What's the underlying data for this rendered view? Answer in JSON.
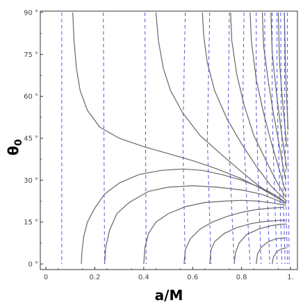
{
  "chart_data": {
    "type": "line",
    "title": "",
    "xlabel": "a/M",
    "ylabel_main": "θ",
    "ylabel_sub": "0",
    "xlim": [
      0,
      1
    ],
    "ylim": [
      0,
      90
    ],
    "x_ticks": [
      {
        "value": 0,
        "label": "0"
      },
      {
        "value": 0.2,
        "label": "0.2"
      },
      {
        "value": 0.4,
        "label": "0.4"
      },
      {
        "value": 0.6,
        "label": "0.6"
      },
      {
        "value": 0.8,
        "label": "0.8"
      },
      {
        "value": 1,
        "label": "1."
      }
    ],
    "y_ticks": [
      {
        "value": 0,
        "label": "0 °"
      },
      {
        "value": 15,
        "label": "15 °"
      },
      {
        "value": 30,
        "label": "30 °"
      },
      {
        "value": 45,
        "label": "45 °"
      },
      {
        "value": 60,
        "label": "60 °"
      },
      {
        "value": 75,
        "label": "75 °"
      },
      {
        "value": 90,
        "label": "90 °"
      }
    ],
    "grid": false,
    "colors": {
      "solid": "#666666",
      "dashed": "#5555dd"
    },
    "solid_curves": [
      [
        [
          0.145,
          0
        ],
        [
          0.148,
          5
        ],
        [
          0.155,
          10
        ],
        [
          0.17,
          15
        ],
        [
          0.2,
          20
        ],
        [
          0.24,
          25
        ],
        [
          0.3,
          29
        ],
        [
          0.38,
          32
        ],
        [
          0.47,
          33.5
        ],
        [
          0.56,
          34
        ],
        [
          0.64,
          33.5
        ],
        [
          0.72,
          32
        ],
        [
          0.8,
          30
        ],
        [
          0.86,
          28
        ],
        [
          0.91,
          26
        ],
        [
          0.95,
          24
        ],
        [
          0.98,
          22
        ]
      ],
      [
        [
          0.24,
          0
        ],
        [
          0.245,
          6
        ],
        [
          0.26,
          12
        ],
        [
          0.29,
          18
        ],
        [
          0.34,
          22
        ],
        [
          0.42,
          26
        ],
        [
          0.5,
          27.5
        ],
        [
          0.6,
          28
        ],
        [
          0.7,
          27.5
        ],
        [
          0.8,
          26.5
        ],
        [
          0.88,
          25
        ],
        [
          0.94,
          23
        ],
        [
          0.98,
          21.5
        ]
      ],
      [
        [
          0.4,
          0
        ],
        [
          0.405,
          6
        ],
        [
          0.42,
          11
        ],
        [
          0.45,
          15
        ],
        [
          0.5,
          18
        ],
        [
          0.57,
          20.5
        ],
        [
          0.65,
          22
        ],
        [
          0.73,
          22.5
        ],
        [
          0.8,
          22.8
        ],
        [
          0.87,
          22.5
        ],
        [
          0.93,
          21.8
        ],
        [
          0.98,
          21
        ]
      ],
      [
        [
          0.565,
          0
        ],
        [
          0.57,
          5
        ],
        [
          0.59,
          9
        ],
        [
          0.63,
          12.5
        ],
        [
          0.68,
          15
        ],
        [
          0.74,
          17
        ],
        [
          0.8,
          18.5
        ],
        [
          0.86,
          19.5
        ],
        [
          0.92,
          20
        ],
        [
          0.97,
          20.3
        ]
      ],
      [
        [
          0.67,
          0
        ],
        [
          0.675,
          5
        ],
        [
          0.69,
          8
        ],
        [
          0.73,
          11
        ],
        [
          0.78,
          13
        ],
        [
          0.84,
          14.5
        ],
        [
          0.9,
          15.3
        ],
        [
          0.95,
          15.6
        ],
        [
          0.98,
          15.7
        ]
      ],
      [
        [
          0.77,
          0
        ],
        [
          0.775,
          4
        ],
        [
          0.79,
          7.5
        ],
        [
          0.82,
          10.5
        ],
        [
          0.87,
          12.5
        ],
        [
          0.92,
          13.7
        ],
        [
          0.96,
          14.2
        ],
        [
          0.985,
          14.3
        ]
      ],
      [
        [
          0.86,
          0
        ],
        [
          0.865,
          3.5
        ],
        [
          0.88,
          6
        ],
        [
          0.91,
          8
        ],
        [
          0.94,
          9
        ],
        [
          0.97,
          9.3
        ],
        [
          0.985,
          9.4
        ]
      ],
      [
        [
          0.925,
          0
        ],
        [
          0.93,
          2.5
        ],
        [
          0.945,
          4.5
        ],
        [
          0.965,
          5.5
        ],
        [
          0.985,
          5.8
        ]
      ],
      [
        [
          0.11,
          90
        ],
        [
          0.115,
          80
        ],
        [
          0.125,
          70
        ],
        [
          0.14,
          62
        ],
        [
          0.17,
          55
        ],
        [
          0.22,
          49
        ],
        [
          0.3,
          45
        ],
        [
          0.4,
          42
        ],
        [
          0.5,
          39.5
        ],
        [
          0.6,
          37
        ],
        [
          0.7,
          34
        ],
        [
          0.8,
          30.5
        ],
        [
          0.88,
          27
        ],
        [
          0.94,
          24
        ],
        [
          0.98,
          22
        ]
      ],
      [
        [
          0.45,
          90
        ],
        [
          0.46,
          80
        ],
        [
          0.48,
          70
        ],
        [
          0.51,
          62
        ],
        [
          0.56,
          54
        ],
        [
          0.63,
          46
        ],
        [
          0.72,
          39
        ],
        [
          0.8,
          33
        ],
        [
          0.87,
          28
        ],
        [
          0.93,
          24.5
        ],
        [
          0.98,
          22
        ]
      ],
      [
        [
          0.64,
          90
        ],
        [
          0.645,
          82
        ],
        [
          0.66,
          72
        ],
        [
          0.69,
          62
        ],
        [
          0.74,
          52
        ],
        [
          0.8,
          43
        ],
        [
          0.86,
          35
        ],
        [
          0.92,
          28
        ],
        [
          0.96,
          24.5
        ],
        [
          0.985,
          22.5
        ]
      ],
      [
        [
          0.755,
          90
        ],
        [
          0.76,
          80
        ],
        [
          0.78,
          68
        ],
        [
          0.81,
          57
        ],
        [
          0.85,
          46
        ],
        [
          0.9,
          37
        ],
        [
          0.94,
          30
        ],
        [
          0.98,
          24
        ]
      ],
      [
        [
          0.835,
          90
        ],
        [
          0.84,
          80
        ],
        [
          0.86,
          66
        ],
        [
          0.89,
          54
        ],
        [
          0.92,
          44
        ],
        [
          0.95,
          35
        ],
        [
          0.98,
          26
        ]
      ],
      [
        [
          0.885,
          90
        ],
        [
          0.89,
          78
        ],
        [
          0.91,
          65
        ],
        [
          0.93,
          54
        ],
        [
          0.955,
          42
        ],
        [
          0.98,
          30
        ]
      ],
      [
        [
          0.92,
          90
        ],
        [
          0.925,
          76
        ],
        [
          0.94,
          63
        ],
        [
          0.96,
          49
        ],
        [
          0.985,
          34
        ]
      ],
      [
        [
          0.95,
          90
        ],
        [
          0.955,
          72
        ],
        [
          0.97,
          56
        ],
        [
          0.985,
          42
        ]
      ],
      [
        [
          0.975,
          90
        ],
        [
          0.98,
          68
        ],
        [
          0.99,
          48
        ]
      ]
    ],
    "dashed_curves": [
      [
        [
          0.065,
          90
        ],
        [
          0.065,
          0
        ]
      ],
      [
        [
          0.235,
          90
        ],
        [
          0.24,
          0
        ]
      ],
      [
        [
          0.405,
          90
        ],
        [
          0.41,
          0
        ]
      ],
      [
        [
          0.57,
          90
        ],
        [
          0.56,
          45
        ],
        [
          0.57,
          0
        ]
      ],
      [
        [
          0.67,
          90
        ],
        [
          0.66,
          45
        ],
        [
          0.675,
          0
        ]
      ],
      [
        [
          0.75,
          90
        ],
        [
          0.745,
          50
        ],
        [
          0.76,
          20
        ],
        [
          0.77,
          0
        ]
      ],
      [
        [
          0.81,
          90
        ],
        [
          0.805,
          55
        ],
        [
          0.82,
          25
        ],
        [
          0.835,
          0
        ]
      ],
      [
        [
          0.86,
          90
        ],
        [
          0.86,
          55
        ],
        [
          0.87,
          25
        ],
        [
          0.88,
          0
        ]
      ],
      [
        [
          0.895,
          90
        ],
        [
          0.895,
          55
        ],
        [
          0.905,
          25
        ],
        [
          0.915,
          0
        ]
      ],
      [
        [
          0.925,
          90
        ],
        [
          0.925,
          55
        ],
        [
          0.935,
          25
        ],
        [
          0.945,
          0
        ]
      ],
      [
        [
          0.945,
          90
        ],
        [
          0.945,
          60
        ],
        [
          0.955,
          30
        ],
        [
          0.965,
          0
        ]
      ],
      [
        [
          0.96,
          90
        ],
        [
          0.962,
          55
        ],
        [
          0.97,
          25
        ],
        [
          0.978,
          0
        ]
      ],
      [
        [
          0.975,
          90
        ],
        [
          0.976,
          55
        ],
        [
          0.982,
          20
        ],
        [
          0.988,
          0
        ]
      ],
      [
        [
          0.987,
          90
        ],
        [
          0.988,
          50
        ],
        [
          0.992,
          20
        ],
        [
          0.995,
          0
        ]
      ]
    ]
  }
}
